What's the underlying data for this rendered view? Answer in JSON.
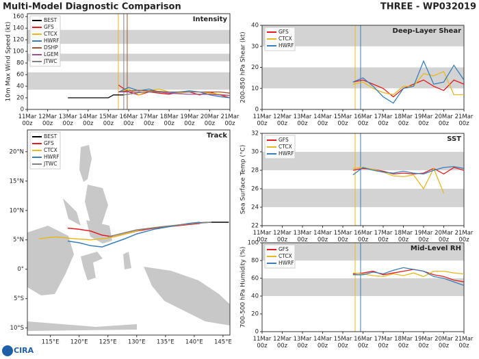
{
  "header": {
    "title": "Multi-Model Diagnostic Comparison",
    "storm": "THREE - WP032019",
    "logo": "CIRA"
  },
  "chart_data": [
    {
      "type": "line",
      "title": "Intensity",
      "ylabel": "10m Max Wind Speed (kt)",
      "legend": "upper left",
      "xlim": [
        0,
        10
      ],
      "ylim": [
        0,
        165
      ],
      "xticks": [
        {
          "value": 0,
          "label": "11Mar 00z"
        },
        {
          "value": 1,
          "label": "12Mar 00z"
        },
        {
          "value": 2,
          "label": "13Mar 00z"
        },
        {
          "value": 3,
          "label": "14Mar 00z"
        },
        {
          "value": 4,
          "label": "15Mar 00z"
        },
        {
          "value": 5,
          "label": "16Mar 00z"
        },
        {
          "value": 6,
          "label": "17Mar 00z"
        },
        {
          "value": 7,
          "label": "18Mar 00z"
        },
        {
          "value": 8,
          "label": "19Mar 00z"
        },
        {
          "value": 9,
          "label": "20Mar 00z"
        },
        {
          "value": 10,
          "label": "21Mar 00z"
        }
      ],
      "yticks": [
        0,
        20,
        40,
        60,
        80,
        100,
        120,
        140,
        160
      ],
      "bands": [
        [
          34,
          64
        ],
        [
          83,
          96
        ],
        [
          113,
          137
        ]
      ],
      "vlines": [
        {
          "x": 4.49,
          "color": "#e8b820"
        },
        {
          "x": 4.76,
          "color": "#808080"
        },
        {
          "x": 4.93,
          "color": "#a0522d"
        }
      ],
      "x": [
        4.5,
        5,
        5.5,
        6,
        6.5,
        7,
        7.5,
        8,
        8.5,
        9,
        9.5,
        10
      ],
      "series": [
        {
          "name": "BEST",
          "color": "#000000",
          "x": [
            2,
            2.5,
            3,
            3.5,
            4,
            4.25,
            4.5,
            4.75
          ],
          "values": [
            20,
            20,
            20,
            20,
            20,
            25,
            25,
            25
          ]
        },
        {
          "name": "GFS",
          "color": "#e41a1c",
          "values": [
            42,
            30,
            25,
            30,
            28,
            26,
            30,
            30,
            25,
            30,
            25,
            20
          ]
        },
        {
          "name": "CTCX",
          "color": "#e8b820",
          "values": [
            30,
            35,
            25,
            32,
            35,
            30,
            28,
            30,
            30,
            28,
            26,
            24
          ]
        },
        {
          "name": "HWRF",
          "color": "#377eb8",
          "values": [
            30,
            38,
            32,
            35,
            30,
            28,
            30,
            32,
            30,
            25,
            22,
            20
          ]
        },
        {
          "name": "DSHP",
          "color": "#a0522d",
          "values": [
            30,
            32,
            33,
            32,
            31,
            30,
            30,
            30,
            30,
            30,
            30,
            28
          ]
        },
        {
          "name": "LGEM",
          "color": "#9b4f96",
          "values": [
            30,
            30,
            30,
            30,
            30,
            28,
            27,
            26,
            26,
            26,
            25,
            24
          ]
        },
        {
          "name": "JTWC",
          "color": "#808080",
          "x": [
            4.75,
            5.75,
            6.75,
            7.75,
            8.75
          ],
          "values": [
            25,
            30,
            30,
            30,
            30
          ]
        }
      ]
    },
    {
      "type": "track",
      "title": "Track",
      "legend": "upper left",
      "xlim": [
        111,
        146.2
      ],
      "ylim": [
        -11.2,
        23.7
      ],
      "xticks": [
        {
          "value": 115,
          "label": "115°E"
        },
        {
          "value": 120,
          "label": "120°E"
        },
        {
          "value": 125,
          "label": "125°E"
        },
        {
          "value": 130,
          "label": "130°E"
        },
        {
          "value": 135,
          "label": "135°E"
        },
        {
          "value": 140,
          "label": "140°E"
        },
        {
          "value": 145,
          "label": "145°E"
        }
      ],
      "yticks": [
        {
          "value": -10,
          "label": "10°S"
        },
        {
          "value": -5,
          "label": "5°S"
        },
        {
          "value": 0,
          "label": "0°"
        },
        {
          "value": 5,
          "label": "5°N"
        },
        {
          "value": 10,
          "label": "10°N"
        },
        {
          "value": 15,
          "label": "15°N"
        },
        {
          "value": 20,
          "label": "20°N"
        }
      ],
      "series": [
        {
          "name": "BEST",
          "color": "#000000",
          "x": [
            137,
            139,
            141,
            143,
            146
          ],
          "values": [
            7.5,
            7.7,
            7.9,
            8,
            8
          ]
        },
        {
          "name": "GFS",
          "color": "#e41a1c",
          "x": [
            118,
            120,
            122,
            124,
            126,
            128,
            130,
            133,
            136,
            139,
            141
          ],
          "values": [
            7,
            6.8,
            6.5,
            5.8,
            5.5,
            6,
            6.5,
            7,
            7.3,
            7.6,
            7.8
          ]
        },
        {
          "name": "CTCX",
          "color": "#e8b820",
          "x": [
            113,
            116,
            119,
            122,
            125,
            128,
            131,
            134,
            137,
            140
          ],
          "values": [
            5.2,
            5.5,
            5.2,
            5,
            5.3,
            6,
            6.8,
            7.2,
            7.5,
            7.8
          ]
        },
        {
          "name": "HWRF",
          "color": "#377eb8",
          "x": [
            118,
            120,
            122,
            124,
            126,
            128,
            130,
            133,
            136,
            139,
            141
          ],
          "values": [
            4.8,
            4.5,
            4,
            3.8,
            4.5,
            5.2,
            6,
            6.8,
            7.3,
            7.8,
            8
          ]
        },
        {
          "name": "JTWC",
          "color": "#808080",
          "x": [
            125,
            130,
            135,
            140,
            143
          ],
          "values": [
            5.5,
            6.7,
            7.3,
            7.8,
            8
          ]
        }
      ]
    },
    {
      "type": "line",
      "title": "Deep-Layer Shear",
      "ylabel": "200-850 hPa Shear (kt)",
      "legend": "upper left",
      "xlim": [
        0,
        10
      ],
      "ylim": [
        0,
        40
      ],
      "xticks": [
        {
          "value": 0,
          "label": "11Mar 00z"
        },
        {
          "value": 1,
          "label": "12Mar 00z"
        },
        {
          "value": 2,
          "label": "13Mar 00z"
        },
        {
          "value": 3,
          "label": "14Mar 00z"
        },
        {
          "value": 4,
          "label": "15Mar 00z"
        },
        {
          "value": 5,
          "label": "16Mar 00z"
        },
        {
          "value": 6,
          "label": "17Mar 00z"
        },
        {
          "value": 7,
          "label": "18Mar 00z"
        },
        {
          "value": 8,
          "label": "19Mar 00z"
        },
        {
          "value": 9,
          "label": "20Mar 00z"
        },
        {
          "value": 10,
          "label": "21Mar 00z"
        }
      ],
      "yticks": [
        0,
        10,
        20,
        30,
        40
      ],
      "bands": [
        [
          10,
          20
        ],
        [
          30,
          40
        ]
      ],
      "vlines": [
        {
          "x": 4.61,
          "color": "#e8b820"
        },
        {
          "x": 4.88,
          "color": "#377eb8"
        }
      ],
      "x": [
        4.5,
        5,
        5.5,
        6,
        6.5,
        7,
        7.5,
        8,
        8.5,
        9,
        9.5,
        10
      ],
      "series": [
        {
          "name": "GFS",
          "color": "#e41a1c",
          "values": [
            13,
            14,
            12,
            10,
            6,
            10,
            12,
            14,
            11,
            9,
            14,
            12
          ]
        },
        {
          "name": "CTCX",
          "color": "#e8b820",
          "values": [
            12,
            13,
            10,
            8,
            7,
            11,
            11,
            17,
            16,
            18,
            7,
            7
          ]
        },
        {
          "name": "HWRF",
          "color": "#377eb8",
          "values": [
            13,
            15,
            11,
            6,
            3,
            10,
            11,
            23,
            12,
            13,
            21,
            14
          ]
        }
      ]
    },
    {
      "type": "line",
      "title": "SST",
      "ylabel": "Sea Surface Temp (°C)",
      "legend": "upper left",
      "xlim": [
        0,
        10
      ],
      "ylim": [
        22,
        32
      ],
      "xticks": [
        {
          "value": 0,
          "label": "11Mar 00z"
        },
        {
          "value": 1,
          "label": "12Mar 00z"
        },
        {
          "value": 2,
          "label": "13Mar 00z"
        },
        {
          "value": 3,
          "label": "14Mar 00z"
        },
        {
          "value": 4,
          "label": "15Mar 00z"
        },
        {
          "value": 5,
          "label": "16Mar 00z"
        },
        {
          "value": 6,
          "label": "17Mar 00z"
        },
        {
          "value": 7,
          "label": "18Mar 00z"
        },
        {
          "value": 8,
          "label": "19Mar 00z"
        },
        {
          "value": 9,
          "label": "20Mar 00z"
        },
        {
          "value": 10,
          "label": "21Mar 00z"
        }
      ],
      "yticks": [
        22,
        24,
        26,
        28,
        30,
        32
      ],
      "bands": [
        [
          24,
          26
        ],
        [
          28,
          30
        ]
      ],
      "vlines": [
        {
          "x": 4.61,
          "color": "#e8b820"
        },
        {
          "x": 4.88,
          "color": "#377eb8"
        }
      ],
      "x": [
        4.5,
        5,
        5.5,
        6,
        6.5,
        7,
        7.5,
        8,
        8.5,
        9,
        9.5,
        10
      ],
      "series": [
        {
          "name": "GFS",
          "color": "#e41a1c",
          "values": [
            28,
            28.2,
            28.1,
            27.9,
            27.6,
            27.7,
            27.6,
            27.7,
            28.2,
            27.6,
            28.3,
            28
          ]
        },
        {
          "name": "CTCX",
          "color": "#e8b820",
          "values": [
            28.2,
            28.3,
            28.1,
            27.8,
            27.4,
            27.3,
            27.5,
            26,
            28.2,
            25.5,
            null,
            null
          ]
        },
        {
          "name": "HWRF",
          "color": "#377eb8",
          "values": [
            27.5,
            28.3,
            28,
            27.8,
            27.7,
            27.9,
            27.7,
            27.6,
            28,
            28.3,
            28.4,
            28.2
          ]
        }
      ]
    },
    {
      "type": "line",
      "title": "Mid-Level RH",
      "ylabel": "700-500 hPa Humidity (%)",
      "legend": "upper left",
      "xlim": [
        0,
        10
      ],
      "ylim": [
        0,
        100
      ],
      "xticks": [
        {
          "value": 0,
          "label": "11Mar 00z"
        },
        {
          "value": 1,
          "label": "12Mar 00z"
        },
        {
          "value": 2,
          "label": "13Mar 00z"
        },
        {
          "value": 3,
          "label": "14Mar 00z"
        },
        {
          "value": 4,
          "label": "15Mar 00z"
        },
        {
          "value": 5,
          "label": "16Mar 00z"
        },
        {
          "value": 6,
          "label": "17Mar 00z"
        },
        {
          "value": 7,
          "label": "18Mar 00z"
        },
        {
          "value": 8,
          "label": "19Mar 00z"
        },
        {
          "value": 9,
          "label": "20Mar 00z"
        },
        {
          "value": 10,
          "label": "21Mar 00z"
        }
      ],
      "yticks": [
        0,
        20,
        40,
        60,
        80,
        100
      ],
      "bands": [
        [
          40,
          60
        ],
        [
          80,
          100
        ]
      ],
      "vlines": [
        {
          "x": 4.61,
          "color": "#e8b820"
        },
        {
          "x": 4.88,
          "color": "#377eb8"
        }
      ],
      "x": [
        4.5,
        5,
        5.5,
        6,
        6.5,
        7,
        7.5,
        8,
        8.5,
        9,
        9.5,
        10
      ],
      "series": [
        {
          "name": "GFS",
          "color": "#e41a1c",
          "values": [
            65,
            66,
            68,
            64,
            66,
            68,
            70,
            68,
            64,
            62,
            58,
            56
          ]
        },
        {
          "name": "CTCX",
          "color": "#e8b820",
          "values": [
            66,
            65,
            63,
            62,
            65,
            63,
            66,
            62,
            68,
            68,
            66,
            65
          ]
        },
        {
          "name": "HWRF",
          "color": "#377eb8",
          "values": [
            64,
            64,
            67,
            65,
            69,
            72,
            70,
            68,
            62,
            60,
            56,
            52
          ]
        }
      ]
    }
  ]
}
